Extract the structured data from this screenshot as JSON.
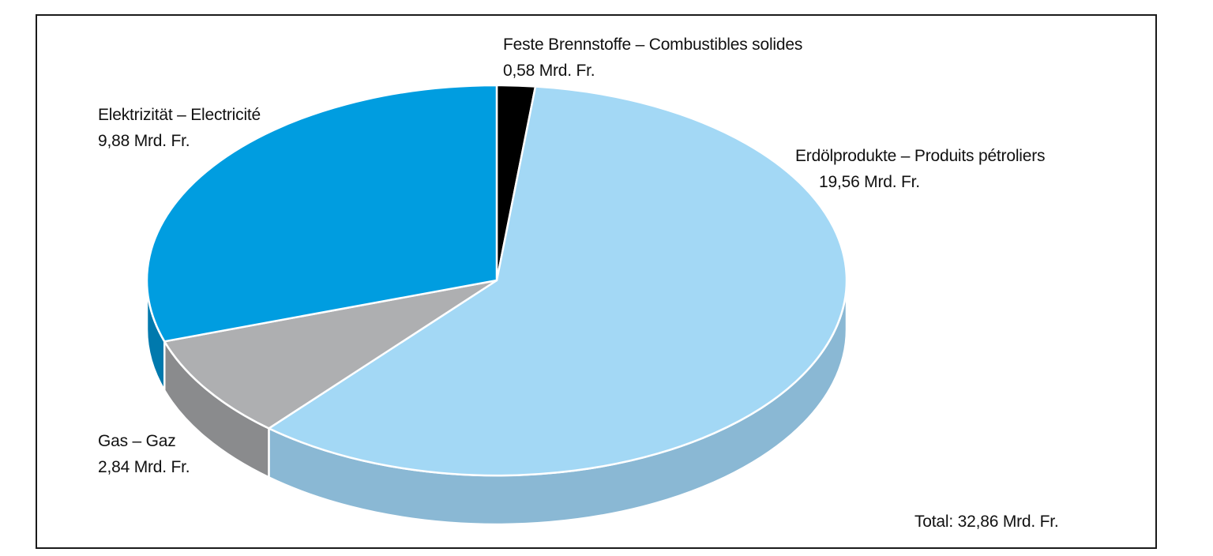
{
  "chart_data": {
    "type": "pie",
    "style": "3d",
    "unit": "Mrd. Fr.",
    "total_label": "Total: 32,86 Mrd. Fr.",
    "total": 32.86,
    "slices": [
      {
        "name": "Feste Brennstoffe – Combustibles solides",
        "value": 0.58,
        "value_label": "0,58 Mrd. Fr.",
        "color": "#000000",
        "side_color": "#000000"
      },
      {
        "name": "Erdölprodukte – Produits pétroliers",
        "value": 19.56,
        "value_label": "19,56 Mrd. Fr.",
        "color": "#a3d8f5",
        "side_color": "#8ab8d4"
      },
      {
        "name": "Gas – Gaz",
        "value": 2.84,
        "value_label": "2,84 Mrd. Fr.",
        "color": "#aeafb1",
        "side_color": "#8a8b8d"
      },
      {
        "name": "Elektrizität – Electricité",
        "value": 9.88,
        "value_label": "9,88 Mrd. Fr.",
        "color": "#009de0",
        "side_color": "#0079ad"
      }
    ]
  }
}
